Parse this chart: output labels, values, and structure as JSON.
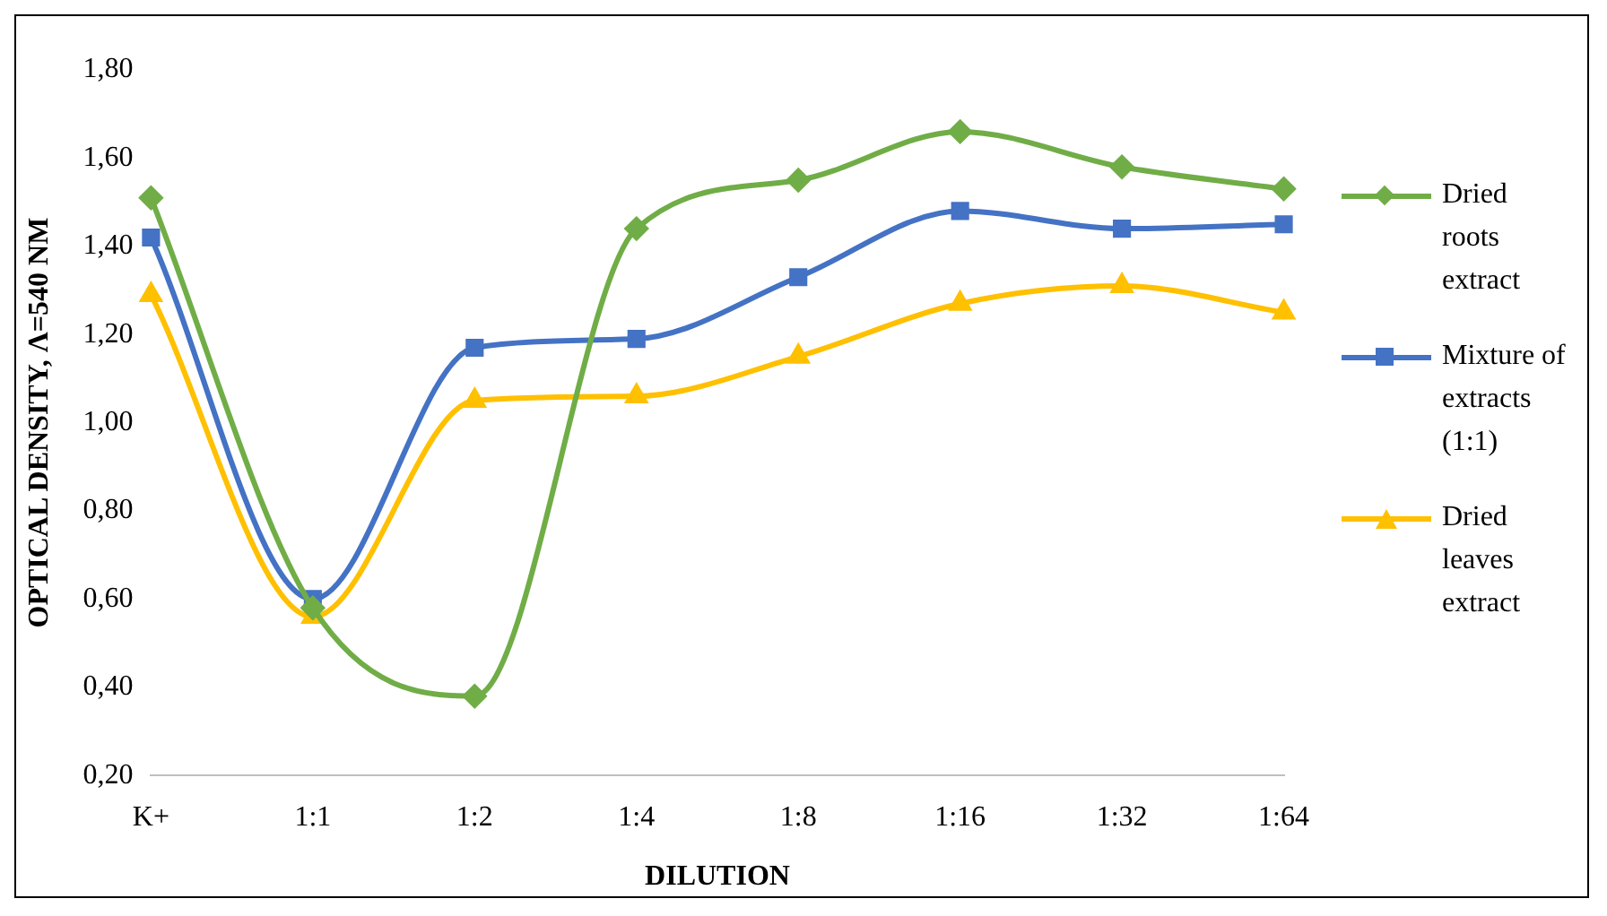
{
  "chart_data": {
    "type": "line",
    "xlabel": "DILUTION",
    "ylabel": "OPTICAL DENSITY, Λ=540 NM",
    "categories": [
      "K+",
      "1:1",
      "1:2",
      "1:4",
      "1:8",
      "1:16",
      "1:32",
      "1:64"
    ],
    "series": [
      {
        "name": "Dried roots extract",
        "color": "#70ad47",
        "marker": "diamond",
        "values": [
          1.51,
          0.58,
          0.38,
          1.44,
          1.55,
          1.66,
          1.58,
          1.53
        ]
      },
      {
        "name": "Mixture of extracts (1:1)",
        "color": "#4472c4",
        "marker": "square",
        "values": [
          1.42,
          0.6,
          1.17,
          1.19,
          1.33,
          1.48,
          1.44,
          1.45
        ]
      },
      {
        "name": "Dried leaves extract",
        "color": "#ffc000",
        "marker": "triangle",
        "values": [
          1.29,
          0.56,
          1.05,
          1.06,
          1.15,
          1.27,
          1.31,
          1.25
        ]
      }
    ],
    "ylim": [
      0.2,
      1.8
    ],
    "yticks": [
      {
        "value": 0.2,
        "label": "0,20"
      },
      {
        "value": 0.4,
        "label": "0,40"
      },
      {
        "value": 0.6,
        "label": "0,60"
      },
      {
        "value": 0.8,
        "label": "0,80"
      },
      {
        "value": 1.0,
        "label": "1,00"
      },
      {
        "value": 1.2,
        "label": "1,20"
      },
      {
        "value": 1.4,
        "label": "1,40"
      },
      {
        "value": 1.6,
        "label": "1,60"
      },
      {
        "value": 1.8,
        "label": "1,80"
      }
    ],
    "grid": false,
    "legend": "right",
    "line_style": "solid"
  }
}
